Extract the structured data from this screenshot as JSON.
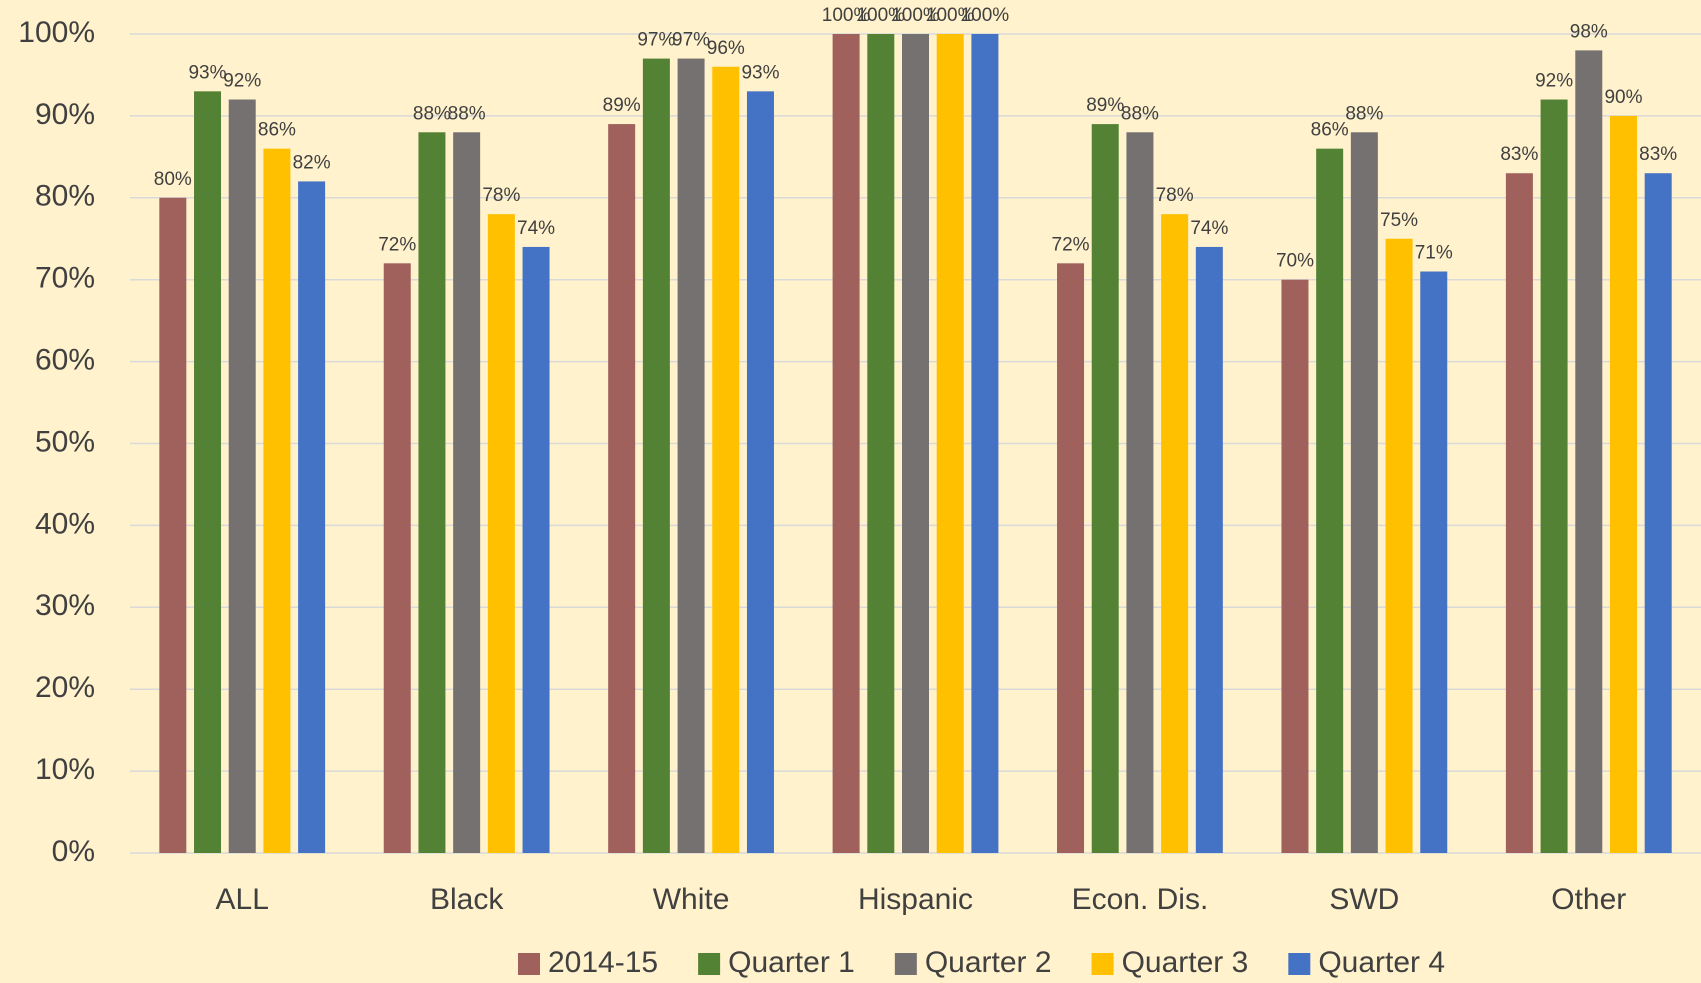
{
  "chart_data": {
    "type": "bar",
    "categories": [
      "ALL",
      "Black",
      "White",
      "Hispanic",
      "Econ. Dis.",
      "SWD",
      "Other"
    ],
    "series": [
      {
        "name": "2014-15",
        "color": "#a0605c",
        "values": [
          80,
          72,
          89,
          100,
          72,
          70,
          83
        ],
        "value_labels": [
          "80%",
          "72%",
          "89%",
          "100%",
          "72%",
          "70%",
          "83%"
        ]
      },
      {
        "name": "Quarter 1",
        "color": "#548235",
        "values": [
          93,
          88,
          97,
          100,
          89,
          86,
          92
        ],
        "value_labels": [
          "93%",
          "88%",
          "97%",
          "100%",
          "89%",
          "86%",
          "92%"
        ]
      },
      {
        "name": "Quarter 2",
        "color": "#767171",
        "values": [
          92,
          88,
          97,
          100,
          88,
          88,
          98
        ],
        "value_labels": [
          "92%",
          "88%",
          "97%",
          "100%",
          "88%",
          "88%",
          "98%"
        ]
      },
      {
        "name": "Quarter 3",
        "color": "#ffc000",
        "values": [
          86,
          78,
          96,
          100,
          78,
          75,
          90
        ],
        "value_labels": [
          "86%",
          "78%",
          "96%",
          "100%",
          "78%",
          "75%",
          "90%"
        ]
      },
      {
        "name": "Quarter 4",
        "color": "#4472c4",
        "values": [
          82,
          74,
          93,
          100,
          74,
          71,
          83
        ],
        "value_labels": [
          "82%",
          "74%",
          "93%",
          "100%",
          "74%",
          "71%",
          "83%"
        ]
      }
    ],
    "ylim": [
      0,
      100
    ],
    "yticks": [
      {
        "value": 0,
        "label": "0%"
      },
      {
        "value": 10,
        "label": "10%"
      },
      {
        "value": 20,
        "label": "20%"
      },
      {
        "value": 30,
        "label": "30%"
      },
      {
        "value": 40,
        "label": "40%"
      },
      {
        "value": 50,
        "label": "50%"
      },
      {
        "value": 60,
        "label": "60%"
      },
      {
        "value": 70,
        "label": "70%"
      },
      {
        "value": 80,
        "label": "80%"
      },
      {
        "value": 90,
        "label": "90%"
      },
      {
        "value": 100,
        "label": "100%"
      }
    ],
    "grid": true,
    "legend": "bottom"
  }
}
